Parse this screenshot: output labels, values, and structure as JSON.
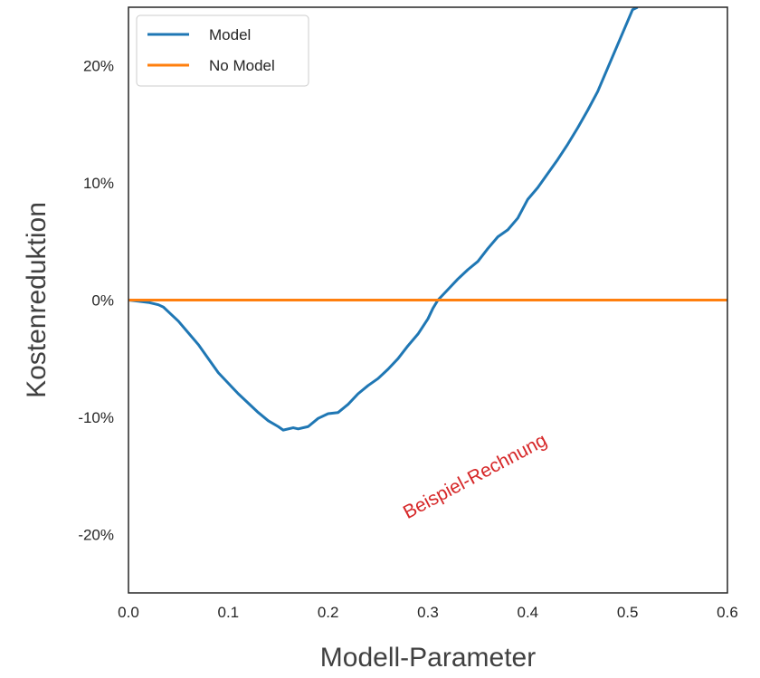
{
  "chart_data": {
    "type": "line",
    "title": "",
    "xlabel": "Modell-Parameter",
    "ylabel": "Kostenreduktion",
    "xlim": [
      0.0,
      0.6
    ],
    "ylim": [
      -25,
      25
    ],
    "x_ticks": [
      0.0,
      0.1,
      0.2,
      0.3,
      0.4,
      0.5,
      0.6
    ],
    "x_tick_labels": [
      "0.0",
      "0.1",
      "0.2",
      "0.3",
      "0.4",
      "0.5",
      "0.6"
    ],
    "y_ticks": [
      -20,
      -10,
      0,
      10,
      20
    ],
    "y_tick_labels": [
      "-20%",
      "-10%",
      "0%",
      "10%",
      "20%"
    ],
    "grid": false,
    "legend": {
      "placement": "top-left",
      "entries": [
        "Model",
        "No Model"
      ]
    },
    "annotations": [
      {
        "text": "Beispiel-Rechnung",
        "x": 0.35,
        "y": -15.5,
        "rotation_deg": -28,
        "color": "#d62728"
      }
    ],
    "series": [
      {
        "name": "Model",
        "color": "#1f77b4",
        "points": [
          [
            0.0,
            0.0
          ],
          [
            0.01,
            -0.1
          ],
          [
            0.02,
            -0.2
          ],
          [
            0.03,
            -0.4
          ],
          [
            0.035,
            -0.6
          ],
          [
            0.04,
            -1.0
          ],
          [
            0.05,
            -1.8
          ],
          [
            0.06,
            -2.8
          ],
          [
            0.07,
            -3.8
          ],
          [
            0.08,
            -5.0
          ],
          [
            0.09,
            -6.2
          ],
          [
            0.1,
            -7.1
          ],
          [
            0.11,
            -8.0
          ],
          [
            0.12,
            -8.8
          ],
          [
            0.13,
            -9.6
          ],
          [
            0.14,
            -10.3
          ],
          [
            0.15,
            -10.8
          ],
          [
            0.155,
            -11.1
          ],
          [
            0.165,
            -10.9
          ],
          [
            0.17,
            -11.0
          ],
          [
            0.18,
            -10.8
          ],
          [
            0.19,
            -10.1
          ],
          [
            0.2,
            -9.7
          ],
          [
            0.21,
            -9.6
          ],
          [
            0.22,
            -8.9
          ],
          [
            0.23,
            -8.0
          ],
          [
            0.24,
            -7.3
          ],
          [
            0.25,
            -6.7
          ],
          [
            0.26,
            -5.9
          ],
          [
            0.27,
            -5.0
          ],
          [
            0.28,
            -3.9
          ],
          [
            0.29,
            -2.9
          ],
          [
            0.3,
            -1.6
          ],
          [
            0.305,
            -0.7
          ],
          [
            0.31,
            0.0
          ],
          [
            0.32,
            0.9
          ],
          [
            0.33,
            1.8
          ],
          [
            0.34,
            2.6
          ],
          [
            0.35,
            3.3
          ],
          [
            0.36,
            4.4
          ],
          [
            0.37,
            5.4
          ],
          [
            0.38,
            6.0
          ],
          [
            0.39,
            7.0
          ],
          [
            0.4,
            8.6
          ],
          [
            0.41,
            9.6
          ],
          [
            0.42,
            10.8
          ],
          [
            0.43,
            12.0
          ],
          [
            0.44,
            13.3
          ],
          [
            0.45,
            14.7
          ],
          [
            0.46,
            16.2
          ],
          [
            0.47,
            17.8
          ],
          [
            0.48,
            19.8
          ],
          [
            0.49,
            21.8
          ],
          [
            0.5,
            23.8
          ],
          [
            0.505,
            24.8
          ],
          [
            0.51,
            25.0
          ]
        ]
      },
      {
        "name": "No Model",
        "color": "#ff7f0e",
        "points": [
          [
            0.0,
            0.0
          ],
          [
            0.6,
            0.0
          ]
        ]
      }
    ]
  }
}
